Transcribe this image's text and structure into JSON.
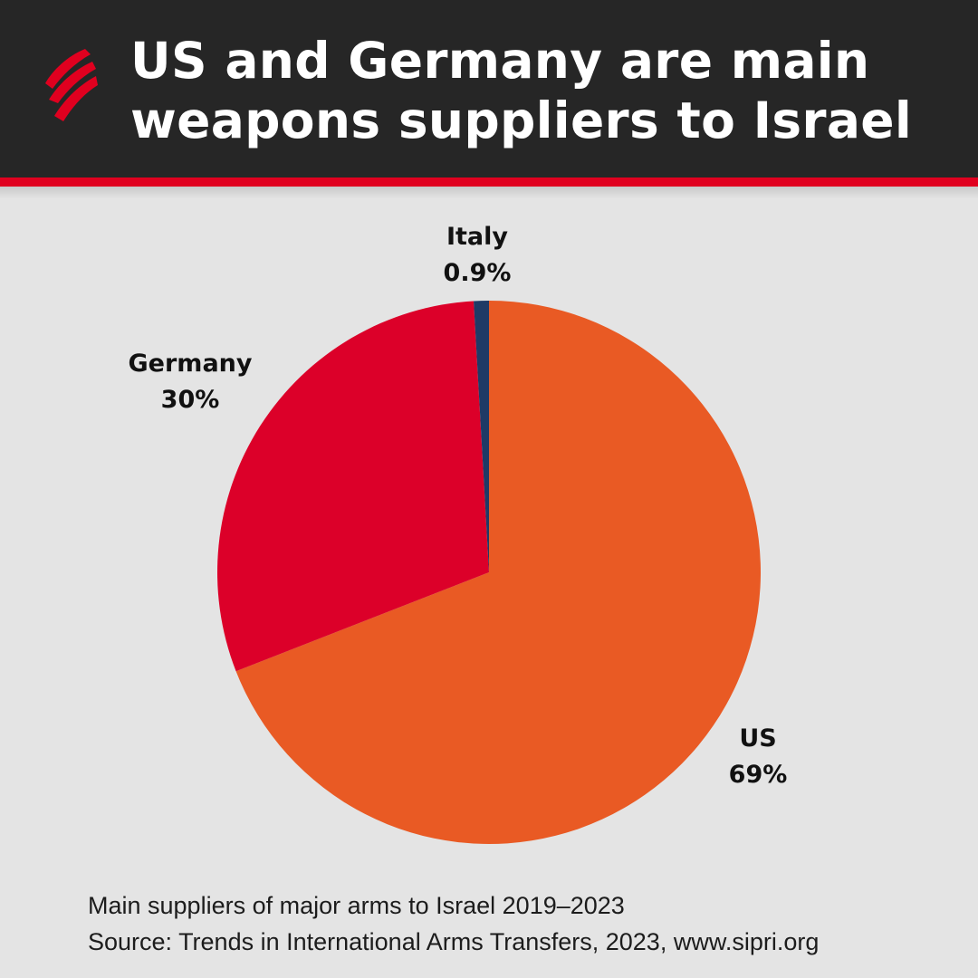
{
  "header": {
    "title_line_1": "US and Germany are main",
    "title_line_2": "weapons suppliers to Israel",
    "logo": "sbs-logo",
    "background_color": "#262626",
    "accent_color": "#e0001f"
  },
  "chart_data": {
    "type": "pie",
    "title": "US and Germany are main weapons suppliers to Israel",
    "slices": [
      {
        "name": "US",
        "value": 69,
        "value_label": "69%",
        "color": "#e95a24"
      },
      {
        "name": "Germany",
        "value": 30,
        "value_label": "30%",
        "color": "#dc0029"
      },
      {
        "name": "Italy",
        "value": 0.9,
        "value_label": "0.9%",
        "color": "#1f3a66"
      }
    ],
    "start": "12 o'clock",
    "direction": "clockwise",
    "legend": "none"
  },
  "footer": {
    "caption": "Main suppliers of major arms to Israel 2019–2023",
    "source": "Source: Trends in International Arms Transfers, 2023,  www.sipri.org"
  }
}
